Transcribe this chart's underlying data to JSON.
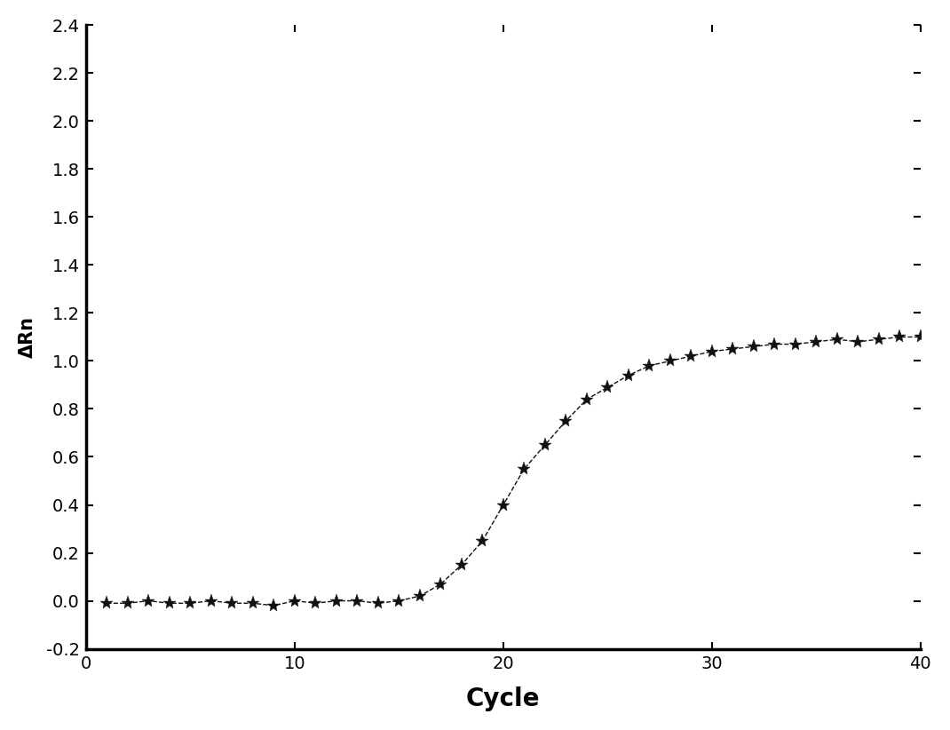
{
  "xlabel": "Cycle",
  "ylabel": "ΔRn",
  "xlim": [
    0,
    40
  ],
  "ylim": [
    -0.2,
    2.4
  ],
  "xticks": [
    0,
    10,
    20,
    30,
    40
  ],
  "yticks": [
    -0.2,
    0.0,
    0.2,
    0.4,
    0.6,
    0.8,
    1.0,
    1.2,
    1.4,
    1.6,
    1.8,
    2.0,
    2.2,
    2.4
  ],
  "line_color": "#111111",
  "marker": "*",
  "marker_size": 11,
  "line_style": "--",
  "line_width": 1.0,
  "xlabel_fontsize": 20,
  "ylabel_fontsize": 15,
  "tick_fontsize": 14,
  "background_color": "#ffffff",
  "y_values": [
    -0.01,
    -0.01,
    0.0,
    -0.01,
    -0.01,
    0.0,
    -0.01,
    -0.01,
    -0.02,
    0.0,
    -0.01,
    0.0,
    0.0,
    -0.01,
    0.0,
    0.02,
    0.07,
    0.15,
    0.25,
    0.4,
    0.55,
    0.65,
    0.75,
    0.84,
    0.89,
    0.94,
    0.98,
    1.0,
    1.02,
    1.04,
    1.05,
    1.06,
    1.07,
    1.07,
    1.08,
    1.09,
    1.08,
    1.09,
    1.1,
    1.1
  ],
  "cycles": [
    1,
    2,
    3,
    4,
    5,
    6,
    7,
    8,
    9,
    10,
    11,
    12,
    13,
    14,
    15,
    16,
    17,
    18,
    19,
    20,
    21,
    22,
    23,
    24,
    25,
    26,
    27,
    28,
    29,
    30,
    31,
    32,
    33,
    34,
    35,
    36,
    37,
    38,
    39,
    40
  ]
}
